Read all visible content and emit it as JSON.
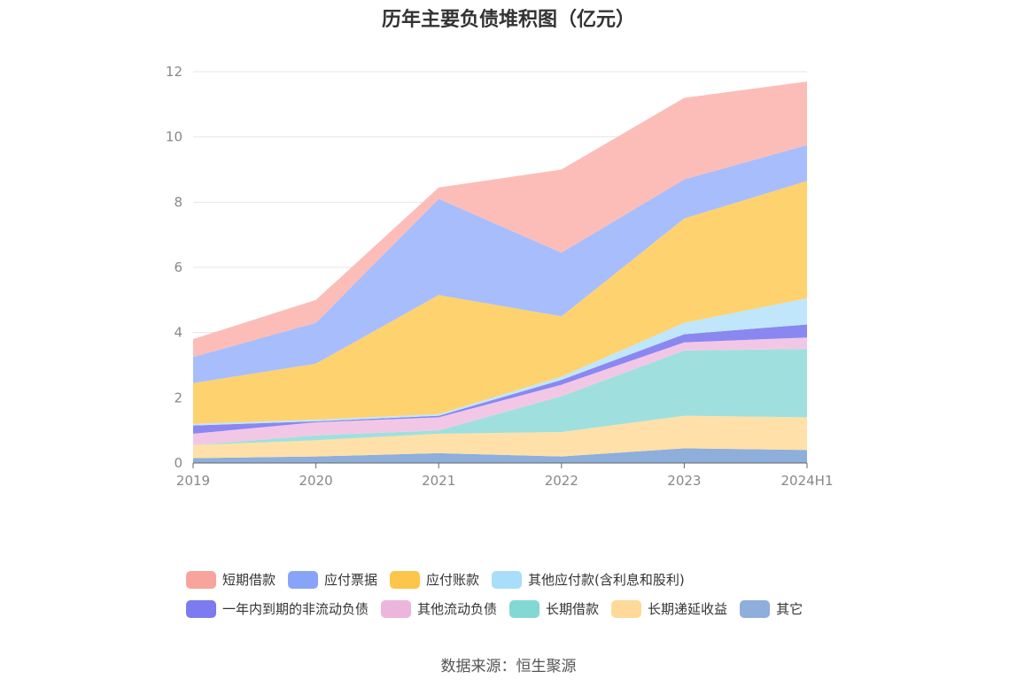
{
  "chart_data": {
    "type": "area",
    "stacked": true,
    "title": "历年主要负债堆积图（亿元）",
    "categories": [
      "2019",
      "2020",
      "2021",
      "2022",
      "2023",
      "2024H1"
    ],
    "ylim": [
      0,
      12
    ],
    "yticks": [
      "0",
      "2",
      "4",
      "6",
      "8",
      "10",
      "12"
    ],
    "grid": true,
    "legend_position": "bottom",
    "series": [
      {
        "name": "其它",
        "color": "#8eaedb",
        "values": [
          0.15,
          0.2,
          0.3,
          0.2,
          0.45,
          0.4
        ]
      },
      {
        "name": "长期递延收益",
        "color": "#fee0a8",
        "values": [
          0.4,
          0.5,
          0.6,
          0.75,
          1.0,
          1.0
        ]
      },
      {
        "name": "长期借款",
        "color": "#9fe0de",
        "values": [
          0.0,
          0.15,
          0.1,
          1.1,
          2.0,
          2.1
        ]
      },
      {
        "name": "其他流动负债",
        "color": "#f2c7e6",
        "values": [
          0.35,
          0.4,
          0.4,
          0.35,
          0.25,
          0.35
        ]
      },
      {
        "name": "一年内到期的非流动负债",
        "color": "#8b87f1",
        "values": [
          0.25,
          0.03,
          0.05,
          0.15,
          0.25,
          0.4
        ]
      },
      {
        "name": "其他应付款(含利息和股利)",
        "color": "#bfe6fb",
        "values": [
          0.05,
          0.05,
          0.05,
          0.1,
          0.35,
          0.8
        ]
      },
      {
        "name": "应付账款",
        "color": "#fed26f",
        "values": [
          1.25,
          1.72,
          3.65,
          1.85,
          3.2,
          3.6
        ]
      },
      {
        "name": "应付票据",
        "color": "#a8bdfc",
        "values": [
          0.8,
          1.25,
          2.95,
          1.95,
          1.2,
          1.1
        ]
      },
      {
        "name": "短期借款",
        "color": "#fcbdb8",
        "values": [
          0.55,
          0.7,
          0.35,
          2.55,
          2.5,
          1.95
        ]
      }
    ]
  },
  "legend": {
    "rows": [
      [
        {
          "label": "短期借款",
          "color": "#f8a49c"
        },
        {
          "label": "应付票据",
          "color": "#88a4f8"
        },
        {
          "label": "应付账款",
          "color": "#fcc64a"
        },
        {
          "label": "其他应付款(含利息和股利)",
          "color": "#a8def9"
        }
      ],
      [
        {
          "label": "一年内到期的非流动负债",
          "color": "#7c7bf0"
        },
        {
          "label": "其他流动负债",
          "color": "#ecb6dc"
        },
        {
          "label": "长期借款",
          "color": "#84d8d4"
        },
        {
          "label": "长期递延收益",
          "color": "#fed99a"
        },
        {
          "label": "其它",
          "color": "#8eaedb"
        }
      ]
    ]
  },
  "source": "数据来源：恒生聚源"
}
